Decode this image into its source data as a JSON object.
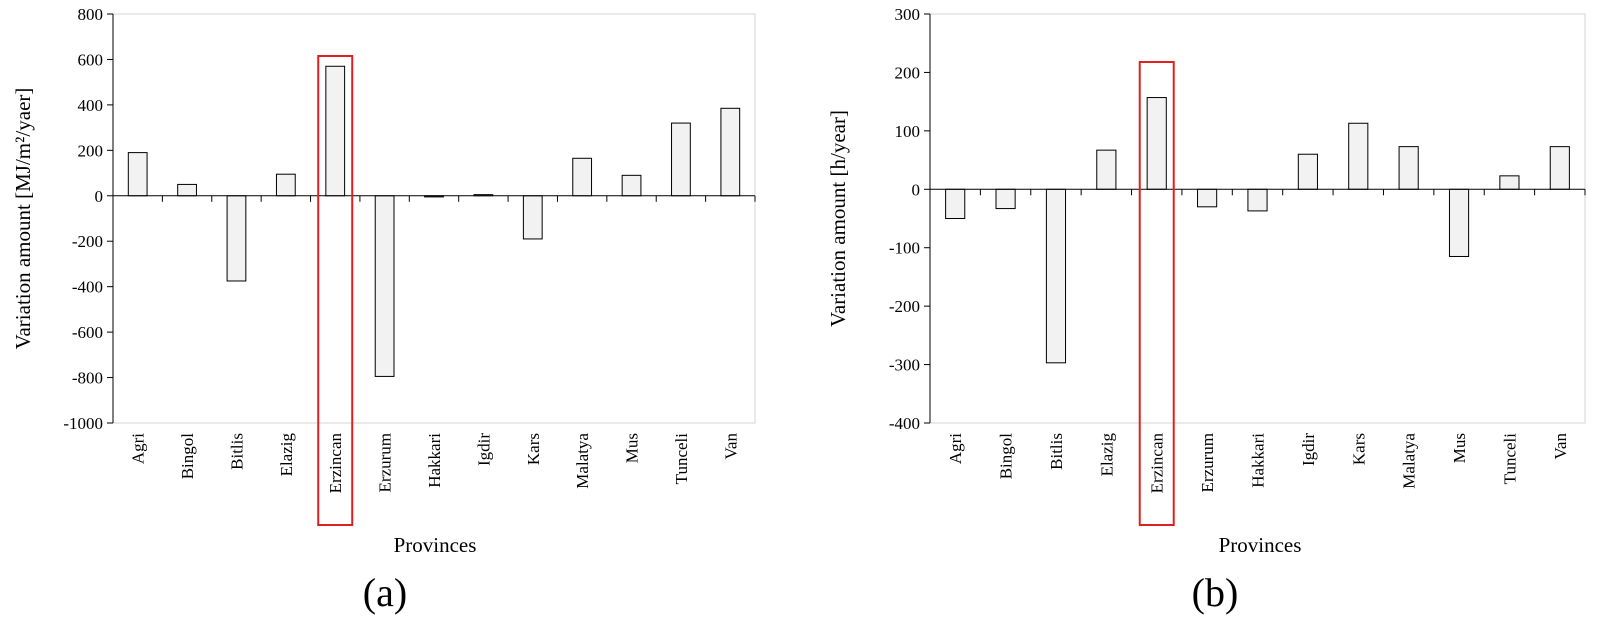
{
  "chart_data": [
    {
      "type": "bar",
      "panel_label": "(a)",
      "categories": [
        "Agri",
        "Bingol",
        "Bitlis",
        "Elazig",
        "Erzincan",
        "Erzurum",
        "Hakkari",
        "Igdir",
        "Kars",
        "Malatya",
        "Mus",
        "Tunceli",
        "Van"
      ],
      "values": [
        190,
        50,
        -375,
        95,
        570,
        -795,
        -5,
        5,
        -190,
        165,
        90,
        320,
        385
      ],
      "xlabel": "Provinces",
      "ylabel": "Variation amount [MJ/m²/yaer]",
      "ylim": [
        -1000,
        800
      ],
      "yticks": [
        800,
        600,
        400,
        200,
        0,
        -200,
        -400,
        -600,
        -800,
        -1000
      ],
      "highlight": "Erzincan",
      "bar_color": "#f2f2f2",
      "highlight_color": "#e02020"
    },
    {
      "type": "bar",
      "panel_label": "(b)",
      "categories": [
        "Agri",
        "Bingol",
        "Bitlis",
        "Elazig",
        "Erzincan",
        "Erzurum",
        "Hakkari",
        "Igdir",
        "Kars",
        "Malatya",
        "Mus",
        "Tunceli",
        "Van"
      ],
      "values": [
        -50,
        -33,
        -297,
        67,
        157,
        -30,
        -37,
        60,
        113,
        73,
        -115,
        23,
        73
      ],
      "xlabel": "Provinces",
      "ylabel": "Variation amount [h/year]",
      "ylim": [
        -400,
        300
      ],
      "yticks": [
        300,
        200,
        100,
        0,
        -100,
        -200,
        -300,
        -400
      ],
      "highlight": "Erzincan",
      "bar_color": "#f2f2f2",
      "highlight_color": "#e02020"
    }
  ]
}
